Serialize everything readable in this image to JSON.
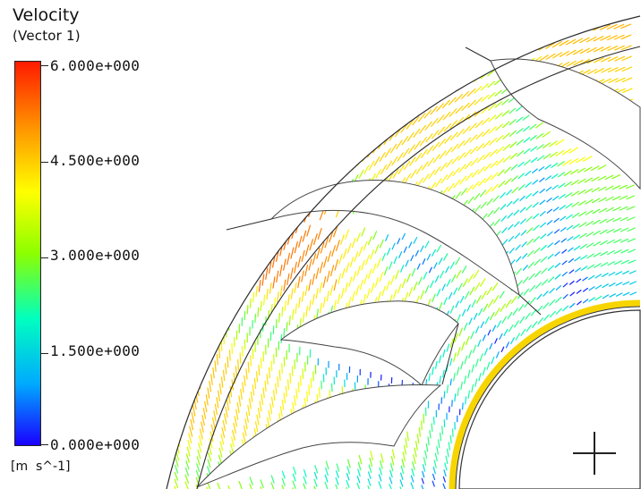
{
  "legend": {
    "title": "Velocity",
    "subtitle": "(Vector  1)",
    "ticks": [
      "6.000e+000",
      "4.500e+000",
      "3.000e+000",
      "1.500e+000",
      "0.000e+000"
    ],
    "units": "[m  s^-1]",
    "min": 0,
    "max": 6,
    "colors": [
      "#1a00ff",
      "#00aaff",
      "#00ffbf",
      "#8cff00",
      "#ffff00",
      "#ff9900",
      "#ff1a00"
    ]
  },
  "viewport": {
    "crosshair": "crosshair-icon"
  }
}
